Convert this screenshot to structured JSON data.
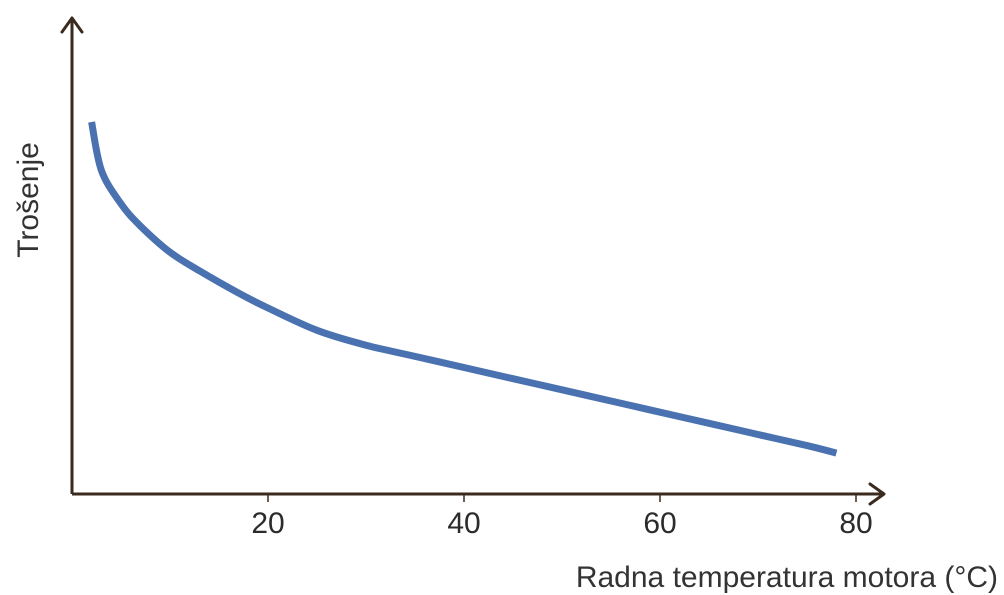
{
  "chart_data": {
    "type": "line",
    "xlabel": "Radna temperatura motora (°C)",
    "ylabel": "Trošenje",
    "xlim": [
      0,
      85
    ],
    "ylim": [
      0,
      100
    ],
    "x_ticks": [
      20,
      40,
      60,
      80
    ],
    "x_tick_labels": [
      "20",
      "40",
      "60",
      "80"
    ],
    "y_ticks": [],
    "grid": false,
    "legend": "none",
    "series": [
      {
        "color": "#4a72b0",
        "x": [
          2,
          3,
          5,
          7,
          10,
          13,
          17,
          20,
          25,
          30,
          35,
          40,
          45,
          50,
          55,
          60,
          65,
          70,
          75,
          78
        ],
        "y": [
          100,
          87,
          78,
          72,
          65,
          60,
          54,
          50,
          44,
          40,
          37,
          34,
          31,
          28,
          25,
          22,
          19,
          16,
          13,
          11
        ]
      }
    ]
  }
}
